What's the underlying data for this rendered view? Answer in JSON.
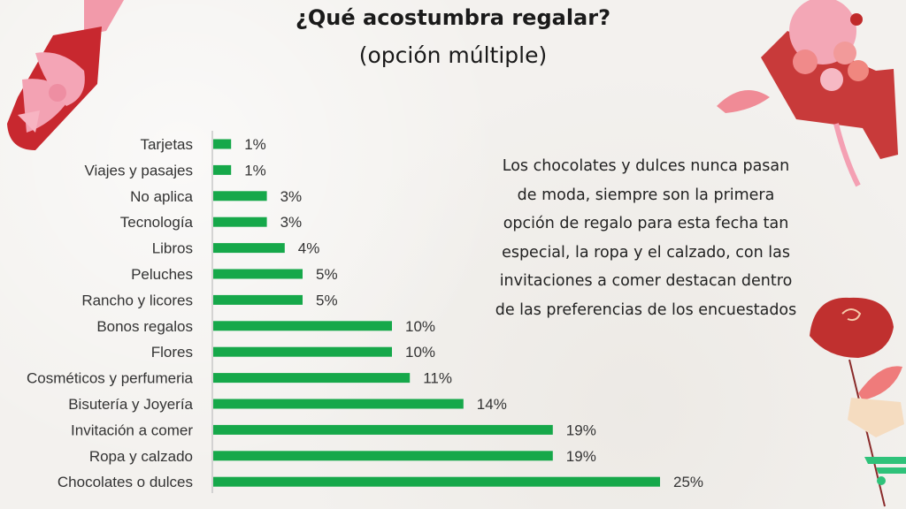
{
  "title": "¿Qué acostumbra regalar?",
  "subtitle": "(opción múltiple)",
  "note": "Los chocolates y dulces nunca pasan de moda, siempre son la primera opción de regalo para esta fecha tan especial, la ropa y el calzado, con las invitaciones a comer destacan dentro de las preferencias de los encuestados",
  "colors": {
    "bar": "#16a84a",
    "axis": "#c8c8c8",
    "text": "#333333"
  },
  "chart_data": {
    "type": "bar",
    "orientation": "horizontal",
    "title": "¿Qué acostumbra regalar?",
    "subtitle": "(opción múltiple)",
    "xlabel": "",
    "ylabel": "",
    "grid": false,
    "xlim": [
      0,
      25
    ],
    "categories": [
      "Tarjetas",
      "Viajes y pasajes",
      "No aplica",
      "Tecnología",
      "Libros",
      "Peluches",
      "Rancho y licores",
      "Bonos regalos",
      "Flores",
      "Cosméticos y perfumeria",
      "Bisutería y Joyería",
      "Invitación a comer",
      "Ropa y calzado",
      "Chocolates o dulces"
    ],
    "values": [
      1,
      1,
      3,
      3,
      4,
      5,
      5,
      10,
      10,
      11,
      14,
      19,
      19,
      25
    ],
    "labels": [
      "1%",
      "1%",
      "3%",
      "3%",
      "4%",
      "5%",
      "5%",
      "10%",
      "10%",
      "11%",
      "14%",
      "19%",
      "19%",
      "25%"
    ]
  },
  "icons": [
    "champagne-bottle-icon",
    "gift-box-teddy-icon",
    "rose-icon",
    "brand-logo-icon"
  ]
}
